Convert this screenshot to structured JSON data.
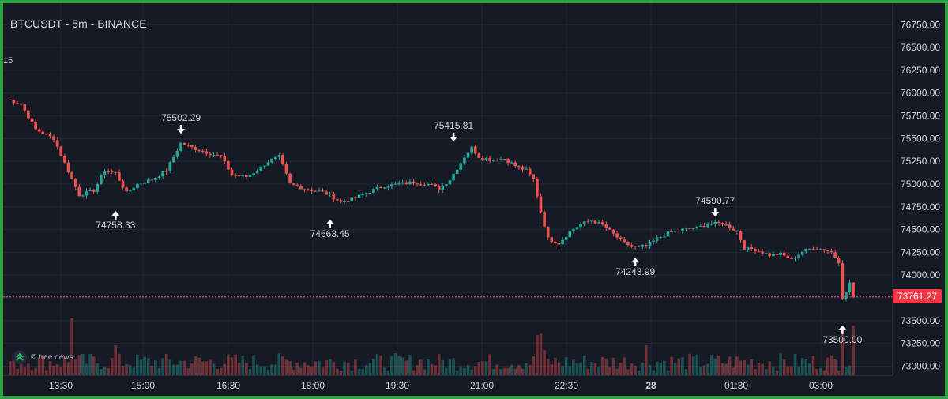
{
  "header": {
    "title": "BTCUSDT - 5m - BINANCE",
    "left_stub": "15"
  },
  "watermark": {
    "text": "© tree.news",
    "icon": "double-chevron-up-icon"
  },
  "last_price_label": "73761.27",
  "colors": {
    "background": "#161a25",
    "up": "#26a69a",
    "down": "#ef5350",
    "grid": "#222734",
    "text": "#d1d4dc",
    "frame": "#2f9e44",
    "price_tag": "#f23645"
  },
  "chart_data": {
    "type": "candlestick",
    "symbol": "BTCUSDT",
    "interval": "5m",
    "exchange": "BINANCE",
    "last_price": 73761.27,
    "y_range": [
      72900,
      76900
    ],
    "y_ticks": [
      73000,
      73250,
      73500,
      73750,
      74000,
      74250,
      74500,
      74750,
      75000,
      75250,
      75500,
      75750,
      76000,
      76250,
      76500,
      76750
    ],
    "y_tick_labels": [
      "73000.00",
      "73250.00",
      "73500.00",
      "73750.00",
      "74000.00",
      "74250.00",
      "74500.00",
      "74750.00",
      "75000.00",
      "75250.00",
      "75500.00",
      "75750.00",
      "76000.00",
      "76250.00",
      "76500.00",
      "76750.00"
    ],
    "x_tick_labels": [
      "13:30",
      "15:00",
      "16:30",
      "18:00",
      "19:30",
      "21:00",
      "22:30",
      "28",
      "01:30",
      "03:00"
    ],
    "x_tick_bold": [
      false,
      false,
      false,
      false,
      false,
      false,
      false,
      true,
      false,
      false
    ],
    "close_path": [
      [
        0,
        75930
      ],
      [
        4,
        75880
      ],
      [
        8,
        75600
      ],
      [
        13,
        75500
      ],
      [
        16,
        75230
      ],
      [
        20,
        74880
      ],
      [
        24,
        74930
      ],
      [
        27,
        75150
      ],
      [
        30,
        75120
      ],
      [
        33,
        74900
      ],
      [
        36,
        75000
      ],
      [
        40,
        75050
      ],
      [
        44,
        75150
      ],
      [
        48,
        75450
      ],
      [
        51,
        75400
      ],
      [
        55,
        75350
      ],
      [
        59,
        75300
      ],
      [
        62,
        75100
      ],
      [
        66,
        75080
      ],
      [
        69,
        75150
      ],
      [
        72,
        75250
      ],
      [
        75,
        75300
      ],
      [
        78,
        75000
      ],
      [
        82,
        74950
      ],
      [
        86,
        74920
      ],
      [
        89,
        74880
      ],
      [
        92,
        74800
      ],
      [
        96,
        74850
      ],
      [
        100,
        74920
      ],
      [
        104,
        74980
      ],
      [
        108,
        75000
      ],
      [
        112,
        75020
      ],
      [
        116,
        75000
      ],
      [
        119,
        74950
      ],
      [
        122,
        75050
      ],
      [
        126,
        75300
      ],
      [
        128,
        75400
      ],
      [
        130,
        75300
      ],
      [
        133,
        75270
      ],
      [
        137,
        75280
      ],
      [
        140,
        75200
      ],
      [
        143,
        75150
      ],
      [
        145,
        75050
      ],
      [
        147,
        74700
      ],
      [
        149,
        74400
      ],
      [
        152,
        74350
      ],
      [
        155,
        74480
      ],
      [
        158,
        74560
      ],
      [
        161,
        74600
      ],
      [
        164,
        74550
      ],
      [
        167,
        74450
      ],
      [
        170,
        74350
      ],
      [
        173,
        74300
      ],
      [
        176,
        74320
      ],
      [
        179,
        74400
      ],
      [
        182,
        74460
      ],
      [
        186,
        74500
      ],
      [
        190,
        74520
      ],
      [
        193,
        74560
      ],
      [
        197,
        74570
      ],
      [
        201,
        74480
      ],
      [
        203,
        74300
      ],
      [
        206,
        74280
      ],
      [
        210,
        74220
      ],
      [
        213,
        74230
      ],
      [
        216,
        74170
      ],
      [
        219,
        74260
      ],
      [
        222,
        74300
      ],
      [
        225,
        74280
      ],
      [
        227,
        74250
      ],
      [
        229,
        74150
      ],
      [
        230,
        73760
      ],
      [
        231,
        73800
      ],
      [
        232,
        73920
      ],
      [
        233,
        73760
      ]
    ],
    "annotations": [
      {
        "label": "74758.33",
        "index": 30,
        "price": 74758.33,
        "type": "low"
      },
      {
        "label": "75502.29",
        "index": 48,
        "price": 75502.29,
        "type": "high"
      },
      {
        "label": "74663.45",
        "index": 89,
        "price": 74663.45,
        "type": "low"
      },
      {
        "label": "75415.81",
        "index": 123,
        "price": 75415.81,
        "type": "high"
      },
      {
        "label": "74243.99",
        "index": 173,
        "price": 74243.99,
        "type": "low"
      },
      {
        "label": "74590.77",
        "index": 195,
        "price": 74590.77,
        "type": "high"
      },
      {
        "label": "73500.00",
        "index": 230,
        "price": 73500.0,
        "type": "low"
      }
    ]
  }
}
